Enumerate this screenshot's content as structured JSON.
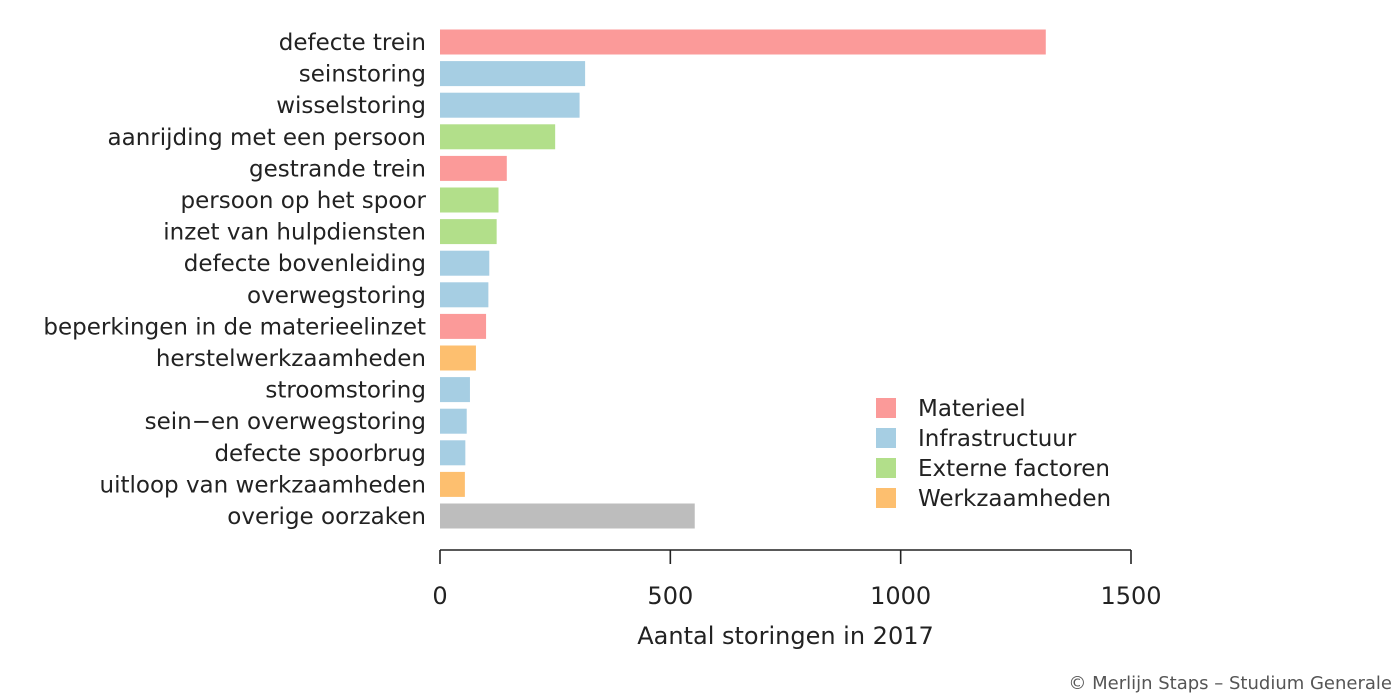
{
  "chart_data": {
    "type": "bar",
    "orientation": "horizontal",
    "xlabel": "Aantal storingen in 2017",
    "xlim": [
      0,
      1500
    ],
    "xticks": [
      0,
      500,
      1000,
      1500
    ],
    "grid": false,
    "legend_position": "bottom-right",
    "groups": [
      {
        "name": "Materieel",
        "color": "#fb9a99"
      },
      {
        "name": "Infrastructuur",
        "color": "#a6cee3"
      },
      {
        "name": "Externe factoren",
        "color": "#b2df8a"
      },
      {
        "name": "Werkzaamheden",
        "color": "#fdbf6f"
      }
    ],
    "other_color": "#bdbdbd",
    "categories": [
      "defecte trein",
      "seinstoring",
      "wisselstoring",
      "aanrijding met een persoon",
      "gestrande trein",
      "persoon op het spoor",
      "inzet van hulpdiensten",
      "defecte bovenleiding",
      "overwegstoring",
      "beperkingen in de materieelinzet",
      "herstelwerkzaamheden",
      "stroomstoring",
      "sein−en overwegstoring",
      "defecte spoorbrug",
      "uitloop van werkzaamheden",
      "overige oorzaken"
    ],
    "values": [
      1315,
      315,
      303,
      250,
      145,
      127,
      123,
      107,
      105,
      100,
      78,
      65,
      58,
      55,
      54,
      553
    ],
    "group_of_bar": [
      "Materieel",
      "Infrastructuur",
      "Infrastructuur",
      "Externe factoren",
      "Materieel",
      "Externe factoren",
      "Externe factoren",
      "Infrastructuur",
      "Infrastructuur",
      "Materieel",
      "Werkzaamheden",
      "Infrastructuur",
      "Infrastructuur",
      "Infrastructuur",
      "Werkzaamheden",
      "other"
    ]
  },
  "credit": "© Merlijn Staps – Studium Generale"
}
